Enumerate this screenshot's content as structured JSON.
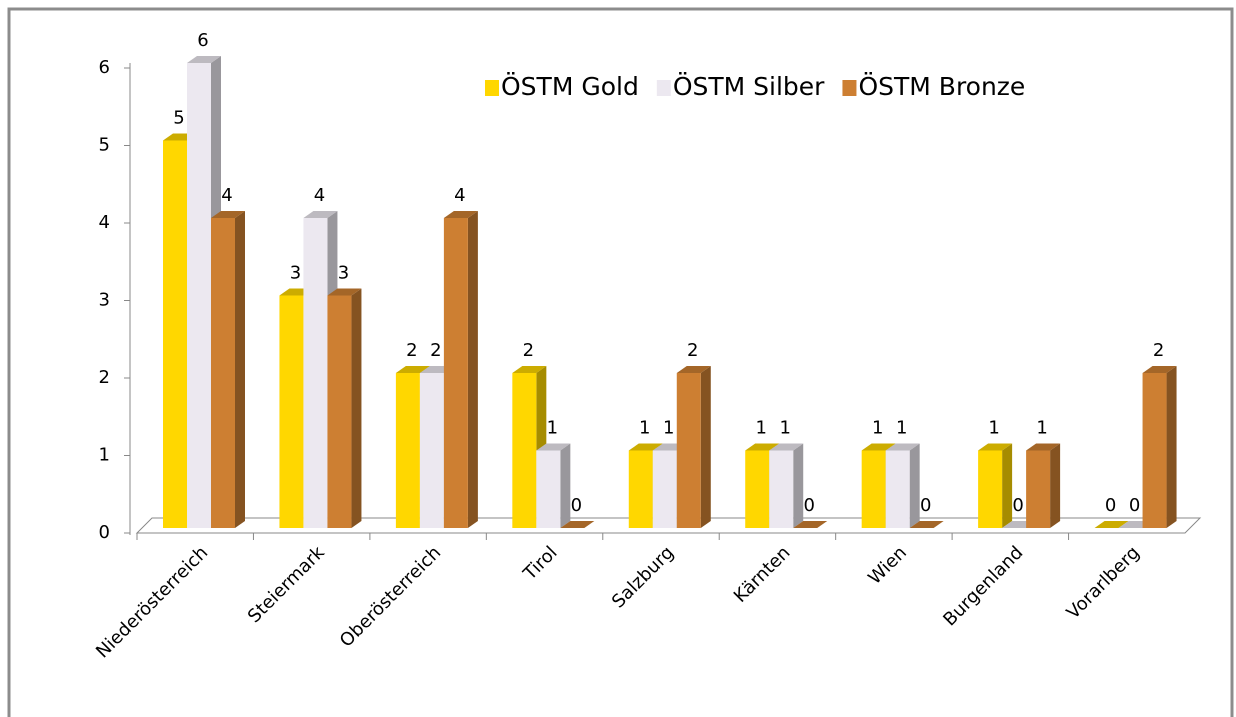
{
  "chart_data": {
    "type": "bar3d",
    "categories": [
      "Niederösterreich",
      "Steiermark",
      "Oberösterreich",
      "Tirol",
      "Salzburg",
      "Kärnten",
      "Wien",
      "Burgenland",
      "Vorarlberg"
    ],
    "series": [
      {
        "name": "ÖSTM Gold",
        "color": "#ffd700",
        "values": [
          5,
          3,
          2,
          2,
          1,
          1,
          1,
          1,
          0
        ]
      },
      {
        "name": "ÖSTM Silber",
        "color": "#ece8f0",
        "values": [
          6,
          4,
          2,
          1,
          1,
          1,
          1,
          0,
          0
        ]
      },
      {
        "name": "ÖSTM Bronze",
        "color": "#cd7f32",
        "values": [
          4,
          3,
          4,
          0,
          2,
          0,
          0,
          1,
          2
        ]
      }
    ],
    "ylim": [
      0,
      6
    ],
    "yticks": [
      0,
      1,
      2,
      3,
      4,
      5,
      6
    ],
    "legend": "top-right"
  }
}
